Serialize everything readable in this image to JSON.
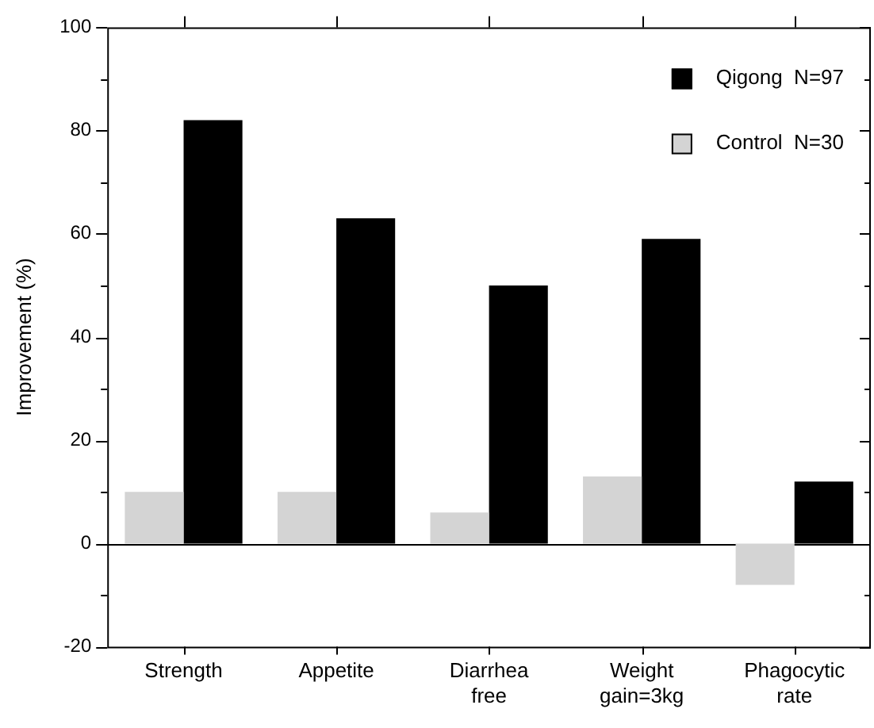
{
  "chart_data": {
    "type": "bar",
    "ylabel": "Improvement (%)",
    "categories": [
      "Strength",
      "Appetite",
      "Diarrhea free",
      "Weight gain=3kg",
      "Phagocytic rate"
    ],
    "series": [
      {
        "name": "Control  N=30",
        "color": "#d4d4d4",
        "values": [
          10,
          10,
          6,
          13,
          -8
        ]
      },
      {
        "name": "Qigong  N=97",
        "color": "#000000",
        "values": [
          82,
          63,
          50,
          59,
          12
        ]
      }
    ],
    "ylim": [
      -20,
      100
    ],
    "yticks": [
      -20,
      {
        "value": -10,
        "label": null
      },
      0,
      {
        "value": 10,
        "label": null
      },
      20,
      {
        "value": 30,
        "label": null
      },
      40,
      {
        "value": 50,
        "label": null
      },
      60,
      {
        "value": 70,
        "label": null
      },
      80,
      {
        "value": 90,
        "label": null
      },
      100
    ],
    "ref_lines": [
      {
        "axis": "y",
        "value": 0,
        "color": "#000000"
      }
    ],
    "grid": false,
    "legend": "top right"
  }
}
